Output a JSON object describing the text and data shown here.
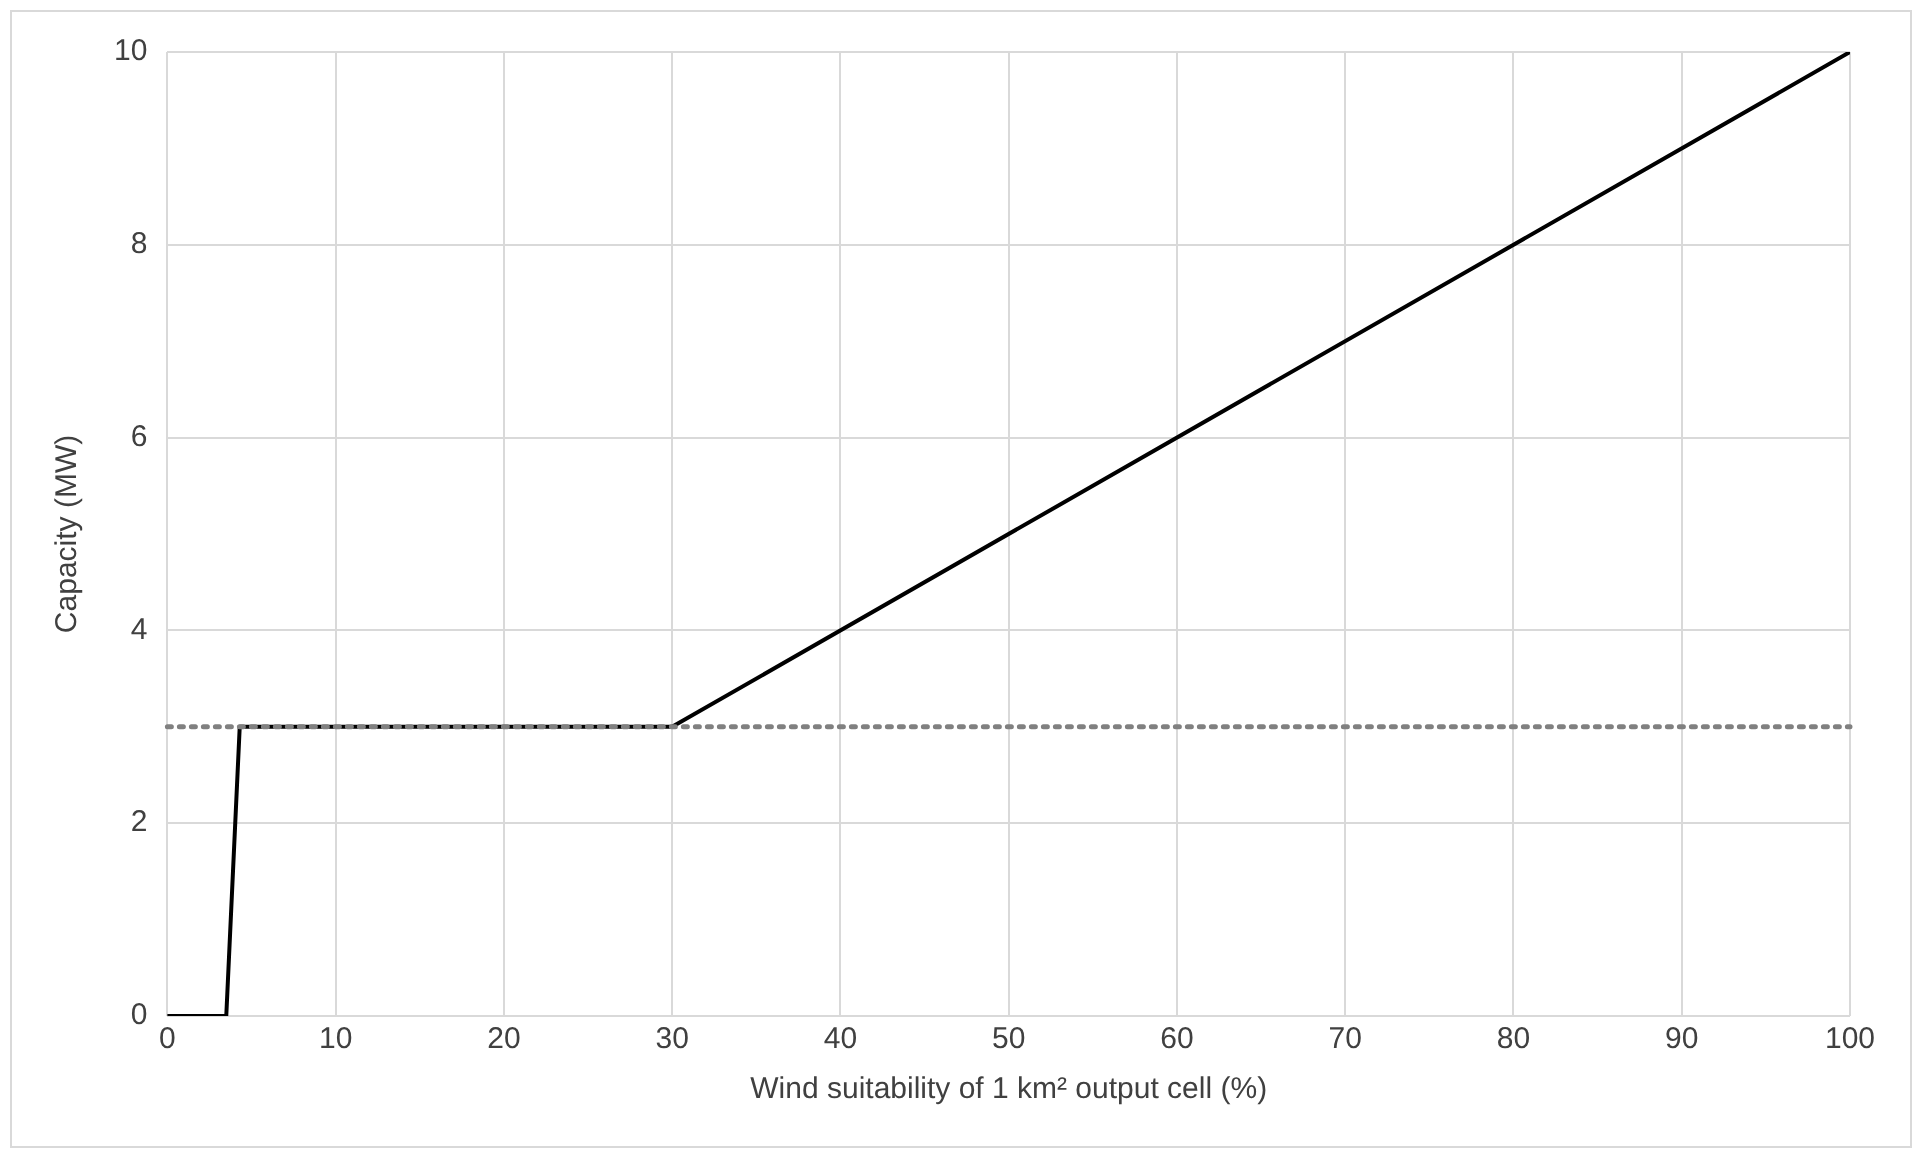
{
  "chart_data": {
    "type": "line",
    "xlabel": "Wind suitability of 1 km² output cell (%)",
    "ylabel": "Capacity (MW)",
    "x": [
      0,
      2.5,
      3.5,
      4.3,
      30,
      100
    ],
    "series": [
      {
        "color": "#000000",
        "values": [
          0,
          0,
          0,
          3,
          3,
          10
        ]
      }
    ],
    "xlim": [
      0,
      100
    ],
    "xticks": [
      0,
      10,
      20,
      30,
      40,
      50,
      60,
      70,
      80,
      90,
      100
    ],
    "ylim": [
      0,
      10
    ],
    "yticks": [
      0,
      2,
      4,
      6,
      8,
      10
    ],
    "grid": true,
    "legend": false,
    "marker": "none",
    "line_style": "solid",
    "ref_lines": [
      {
        "axis": "y",
        "value": 3,
        "color": "#808080",
        "line_style": "dotted"
      }
    ]
  }
}
